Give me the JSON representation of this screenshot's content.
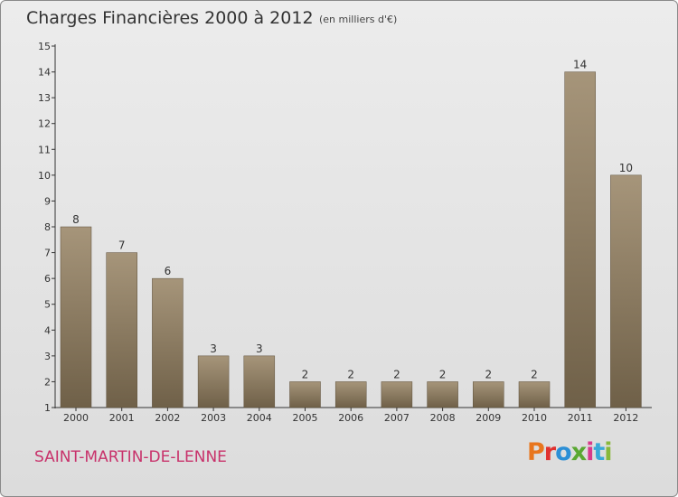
{
  "header": {
    "title": "Charges Financières 2000 à 2012",
    "unit": "(en milliers d'€)"
  },
  "footer": {
    "commune": "SAINT-MARTIN-DE-LENNE",
    "logo_text": "Proxiti",
    "logo_colors": [
      "#e8761e",
      "#e0312f",
      "#2c8fd6",
      "#5aa832",
      "#d83a8a",
      "#3aa9d8",
      "#88b83a"
    ]
  },
  "colors": {
    "bar_top": "#a6957a",
    "bar_bottom": "#6f6048",
    "commune": "#c8326b"
  },
  "chart_data": {
    "type": "bar",
    "title": "Charges Financières 2000 à 2012",
    "subtitle": "(en milliers d'€)",
    "categories": [
      "2000",
      "2001",
      "2002",
      "2003",
      "2004",
      "2005",
      "2006",
      "2007",
      "2008",
      "2009",
      "2010",
      "2011",
      "2012"
    ],
    "values": [
      8,
      7,
      6,
      3,
      3,
      2,
      2,
      2,
      2,
      2,
      2,
      14,
      10
    ],
    "ylim": [
      1,
      15
    ],
    "yticks": [
      1,
      2,
      3,
      4,
      5,
      6,
      7,
      8,
      9,
      10,
      11,
      12,
      13,
      14,
      15
    ],
    "grid": false,
    "data_labels": true
  }
}
